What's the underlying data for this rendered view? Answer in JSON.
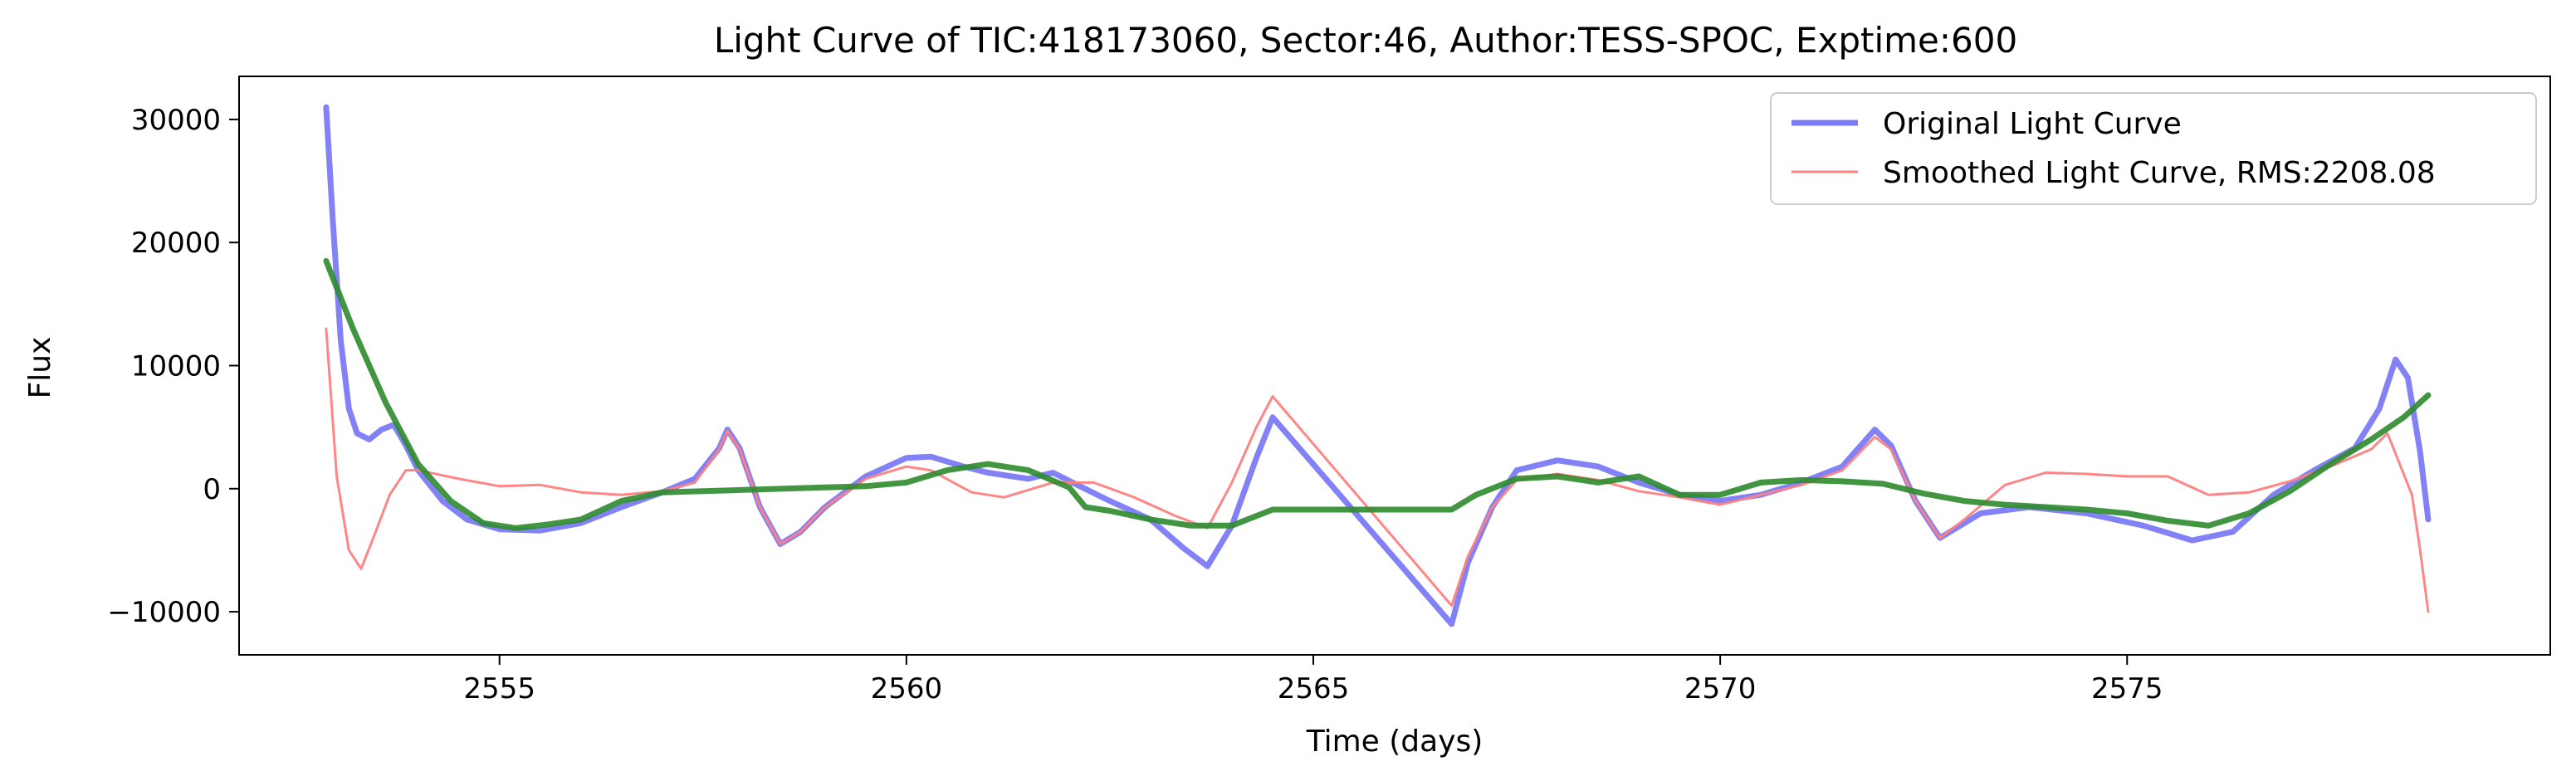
{
  "chart_data": {
    "type": "line",
    "title": "Light Curve of TIC:418173060, Sector:46, Author:TESS-SPOC, Exptime:600",
    "xlabel": "Time (days)",
    "ylabel": "Flux",
    "xlim": [
      2551.8,
      2580.2
    ],
    "ylim": [
      -13500,
      33500
    ],
    "xticks": [
      2555,
      2560,
      2565,
      2570,
      2575
    ],
    "xtick_labels": [
      "2555",
      "2560",
      "2565",
      "2570",
      "2575"
    ],
    "yticks": [
      -10000,
      0,
      10000,
      20000,
      30000
    ],
    "ytick_labels": [
      "−10000",
      "0",
      "10000",
      "20000",
      "30000"
    ],
    "grid": false,
    "legend_position": "top-right",
    "series": [
      {
        "name": "Original Light Curve",
        "color": "#7b7bf5",
        "points": [
          [
            2552.87,
            31000
          ],
          [
            2552.95,
            22000
          ],
          [
            2553.05,
            12000
          ],
          [
            2553.15,
            6500
          ],
          [
            2553.25,
            4500
          ],
          [
            2553.4,
            4000
          ],
          [
            2553.55,
            4800
          ],
          [
            2553.7,
            5200
          ],
          [
            2553.85,
            3500
          ],
          [
            2554.0,
            1500
          ],
          [
            2554.3,
            -1000
          ],
          [
            2554.6,
            -2500
          ],
          [
            2555.0,
            -3300
          ],
          [
            2555.5,
            -3400
          ],
          [
            2556.0,
            -2800
          ],
          [
            2556.5,
            -1500
          ],
          [
            2557.0,
            -300
          ],
          [
            2557.4,
            800
          ],
          [
            2557.7,
            3300
          ],
          [
            2557.8,
            4800
          ],
          [
            2557.95,
            3300
          ],
          [
            2558.2,
            -1500
          ],
          [
            2558.45,
            -4500
          ],
          [
            2558.7,
            -3500
          ],
          [
            2559.0,
            -1500
          ],
          [
            2559.5,
            1000
          ],
          [
            2560.0,
            2500
          ],
          [
            2560.3,
            2600
          ],
          [
            2560.7,
            1800
          ],
          [
            2561.0,
            1300
          ],
          [
            2561.5,
            800
          ],
          [
            2561.8,
            1300
          ],
          [
            2562.1,
            300
          ],
          [
            2562.5,
            -1000
          ],
          [
            2563.0,
            -2500
          ],
          [
            2563.4,
            -4800
          ],
          [
            2563.7,
            -6300
          ],
          [
            2564.0,
            -3000
          ],
          [
            2564.3,
            2500
          ],
          [
            2564.5,
            5800
          ],
          [
            2566.7,
            -11000
          ],
          [
            2566.9,
            -6000
          ],
          [
            2567.2,
            -1500
          ],
          [
            2567.5,
            1500
          ],
          [
            2568.0,
            2300
          ],
          [
            2568.5,
            1800
          ],
          [
            2569.0,
            500
          ],
          [
            2569.5,
            -500
          ],
          [
            2570.0,
            -1000
          ],
          [
            2570.5,
            -500
          ],
          [
            2571.0,
            500
          ],
          [
            2571.5,
            1800
          ],
          [
            2571.9,
            4800
          ],
          [
            2572.1,
            3500
          ],
          [
            2572.4,
            -1000
          ],
          [
            2572.7,
            -4000
          ],
          [
            2573.2,
            -2000
          ],
          [
            2573.8,
            -1500
          ],
          [
            2574.5,
            -2000
          ],
          [
            2575.2,
            -3000
          ],
          [
            2575.8,
            -4200
          ],
          [
            2576.3,
            -3500
          ],
          [
            2576.8,
            -500
          ],
          [
            2577.3,
            1500
          ],
          [
            2577.8,
            3300
          ],
          [
            2578.1,
            6500
          ],
          [
            2578.3,
            10500
          ],
          [
            2578.45,
            9000
          ],
          [
            2578.6,
            3000
          ],
          [
            2578.7,
            -2500
          ]
        ]
      },
      {
        "name": "Smoothed Light Curve, RMS:2208.08",
        "color": "#ff8080",
        "points": [
          [
            2552.87,
            13000
          ],
          [
            2553.0,
            1000
          ],
          [
            2553.15,
            -5000
          ],
          [
            2553.3,
            -6500
          ],
          [
            2553.45,
            -4000
          ],
          [
            2553.65,
            -500
          ],
          [
            2553.85,
            1500
          ],
          [
            2554.0,
            1500
          ],
          [
            2554.5,
            800
          ],
          [
            2555.0,
            200
          ],
          [
            2555.5,
            300
          ],
          [
            2556.0,
            -300
          ],
          [
            2556.5,
            -500
          ],
          [
            2557.0,
            -200
          ],
          [
            2557.4,
            500
          ],
          [
            2557.7,
            3200
          ],
          [
            2557.8,
            4700
          ],
          [
            2557.95,
            3200
          ],
          [
            2558.2,
            -1500
          ],
          [
            2558.45,
            -4500
          ],
          [
            2558.7,
            -3500
          ],
          [
            2559.0,
            -1500
          ],
          [
            2559.5,
            800
          ],
          [
            2560.0,
            1800
          ],
          [
            2560.3,
            1500
          ],
          [
            2560.8,
            -300
          ],
          [
            2561.2,
            -700
          ],
          [
            2561.8,
            500
          ],
          [
            2562.3,
            500
          ],
          [
            2562.8,
            -700
          ],
          [
            2563.3,
            -2200
          ],
          [
            2563.7,
            -3200
          ],
          [
            2564.0,
            500
          ],
          [
            2564.3,
            5000
          ],
          [
            2564.5,
            7500
          ],
          [
            2566.7,
            -9500
          ],
          [
            2566.9,
            -5500
          ],
          [
            2567.2,
            -1500
          ],
          [
            2567.5,
            700
          ],
          [
            2568.0,
            1200
          ],
          [
            2568.5,
            700
          ],
          [
            2569.0,
            -200
          ],
          [
            2569.5,
            -700
          ],
          [
            2570.0,
            -1300
          ],
          [
            2570.5,
            -500
          ],
          [
            2571.0,
            300
          ],
          [
            2571.5,
            1500
          ],
          [
            2571.9,
            4200
          ],
          [
            2572.1,
            3200
          ],
          [
            2572.4,
            -1000
          ],
          [
            2572.7,
            -4000
          ],
          [
            2573.0,
            -2500
          ],
          [
            2573.5,
            300
          ],
          [
            2574.0,
            1300
          ],
          [
            2574.5,
            1200
          ],
          [
            2575.0,
            1000
          ],
          [
            2575.5,
            1000
          ],
          [
            2576.0,
            -500
          ],
          [
            2576.5,
            -300
          ],
          [
            2577.0,
            600
          ],
          [
            2577.5,
            1800
          ],
          [
            2578.0,
            3200
          ],
          [
            2578.2,
            4500
          ],
          [
            2578.35,
            2000
          ],
          [
            2578.5,
            -500
          ],
          [
            2578.6,
            -5000
          ],
          [
            2578.7,
            -10000
          ]
        ]
      },
      {
        "color": "#2e8b2e",
        "points": [
          [
            2552.87,
            18500
          ],
          [
            2553.2,
            13000
          ],
          [
            2553.6,
            7000
          ],
          [
            2554.0,
            2000
          ],
          [
            2554.4,
            -1000
          ],
          [
            2554.8,
            -2800
          ],
          [
            2555.2,
            -3200
          ],
          [
            2555.6,
            -2900
          ],
          [
            2556.0,
            -2500
          ],
          [
            2556.5,
            -1000
          ],
          [
            2557.0,
            -300
          ],
          [
            2557.5,
            -200
          ],
          [
            2558.0,
            -100
          ],
          [
            2558.5,
            0
          ],
          [
            2559.0,
            100
          ],
          [
            2559.5,
            200
          ],
          [
            2560.0,
            500
          ],
          [
            2560.5,
            1500
          ],
          [
            2561.0,
            2000
          ],
          [
            2561.5,
            1500
          ],
          [
            2562.0,
            100
          ],
          [
            2562.2,
            -1500
          ],
          [
            2562.5,
            -1800
          ],
          [
            2563.0,
            -2500
          ],
          [
            2563.5,
            -3000
          ],
          [
            2564.0,
            -3000
          ],
          [
            2564.5,
            -1700
          ],
          [
            2566.7,
            -1700
          ],
          [
            2567.0,
            -500
          ],
          [
            2567.5,
            800
          ],
          [
            2568.0,
            1000
          ],
          [
            2568.5,
            500
          ],
          [
            2569.0,
            1000
          ],
          [
            2569.5,
            -500
          ],
          [
            2570.0,
            -500
          ],
          [
            2570.5,
            500
          ],
          [
            2571.0,
            700
          ],
          [
            2571.5,
            600
          ],
          [
            2572.0,
            400
          ],
          [
            2572.5,
            -400
          ],
          [
            2573.0,
            -1000
          ],
          [
            2573.5,
            -1300
          ],
          [
            2574.0,
            -1500
          ],
          [
            2574.5,
            -1700
          ],
          [
            2575.0,
            -2000
          ],
          [
            2575.5,
            -2600
          ],
          [
            2576.0,
            -3000
          ],
          [
            2576.5,
            -2000
          ],
          [
            2577.0,
            -200
          ],
          [
            2577.5,
            2000
          ],
          [
            2578.0,
            4000
          ],
          [
            2578.4,
            5800
          ],
          [
            2578.7,
            7600
          ]
        ]
      }
    ]
  }
}
